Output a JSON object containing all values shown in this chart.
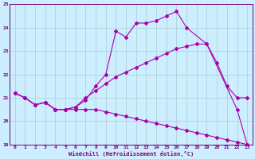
{
  "xlabel": "Windchill (Refroidissement éolien,°C)",
  "xlim": [
    -0.5,
    23.5
  ],
  "ylim": [
    19,
    25
  ],
  "xticks": [
    0,
    1,
    2,
    3,
    4,
    5,
    6,
    7,
    8,
    9,
    10,
    11,
    12,
    13,
    14,
    15,
    16,
    17,
    18,
    19,
    20,
    21,
    22,
    23
  ],
  "yticks": [
    19,
    20,
    21,
    22,
    23,
    24,
    25
  ],
  "bg_color": "#cceeff",
  "line_color": "#aa00aa",
  "grid_color": "#aacccc",
  "line_top_x": [
    0,
    1,
    2,
    3,
    4,
    5,
    6,
    7,
    8,
    9,
    10,
    11,
    12,
    13,
    14,
    15,
    16,
    17,
    19,
    22,
    23
  ],
  "line_top_y": [
    21.2,
    21.0,
    20.7,
    20.8,
    20.5,
    20.5,
    20.6,
    20.9,
    21.5,
    22.0,
    23.85,
    23.6,
    24.2,
    24.2,
    24.3,
    24.5,
    24.7,
    24.0,
    23.3,
    20.5,
    19.0
  ],
  "line_mid_x": [
    0,
    1,
    2,
    3,
    4,
    5,
    6,
    7,
    8,
    9,
    10,
    11,
    12,
    13,
    14,
    15,
    16,
    17,
    18,
    19,
    20,
    21,
    22,
    23
  ],
  "line_mid_y": [
    21.2,
    21.0,
    20.7,
    20.8,
    20.5,
    20.5,
    20.6,
    21.0,
    21.3,
    21.6,
    21.9,
    22.1,
    22.3,
    22.5,
    22.7,
    22.9,
    23.1,
    23.2,
    23.3,
    23.3,
    22.5,
    21.5,
    21.0,
    21.0
  ],
  "line_bot_x": [
    0,
    1,
    2,
    3,
    4,
    5,
    6,
    7,
    8,
    9,
    10,
    11,
    12,
    13,
    14,
    15,
    16,
    17,
    18,
    19,
    20,
    21,
    22,
    23
  ],
  "line_bot_y": [
    21.2,
    21.0,
    20.7,
    20.8,
    20.5,
    20.5,
    20.5,
    20.5,
    20.5,
    20.4,
    20.3,
    20.2,
    20.1,
    20.0,
    19.9,
    19.8,
    19.7,
    19.6,
    19.5,
    19.4,
    19.3,
    19.2,
    19.1,
    19.0
  ]
}
